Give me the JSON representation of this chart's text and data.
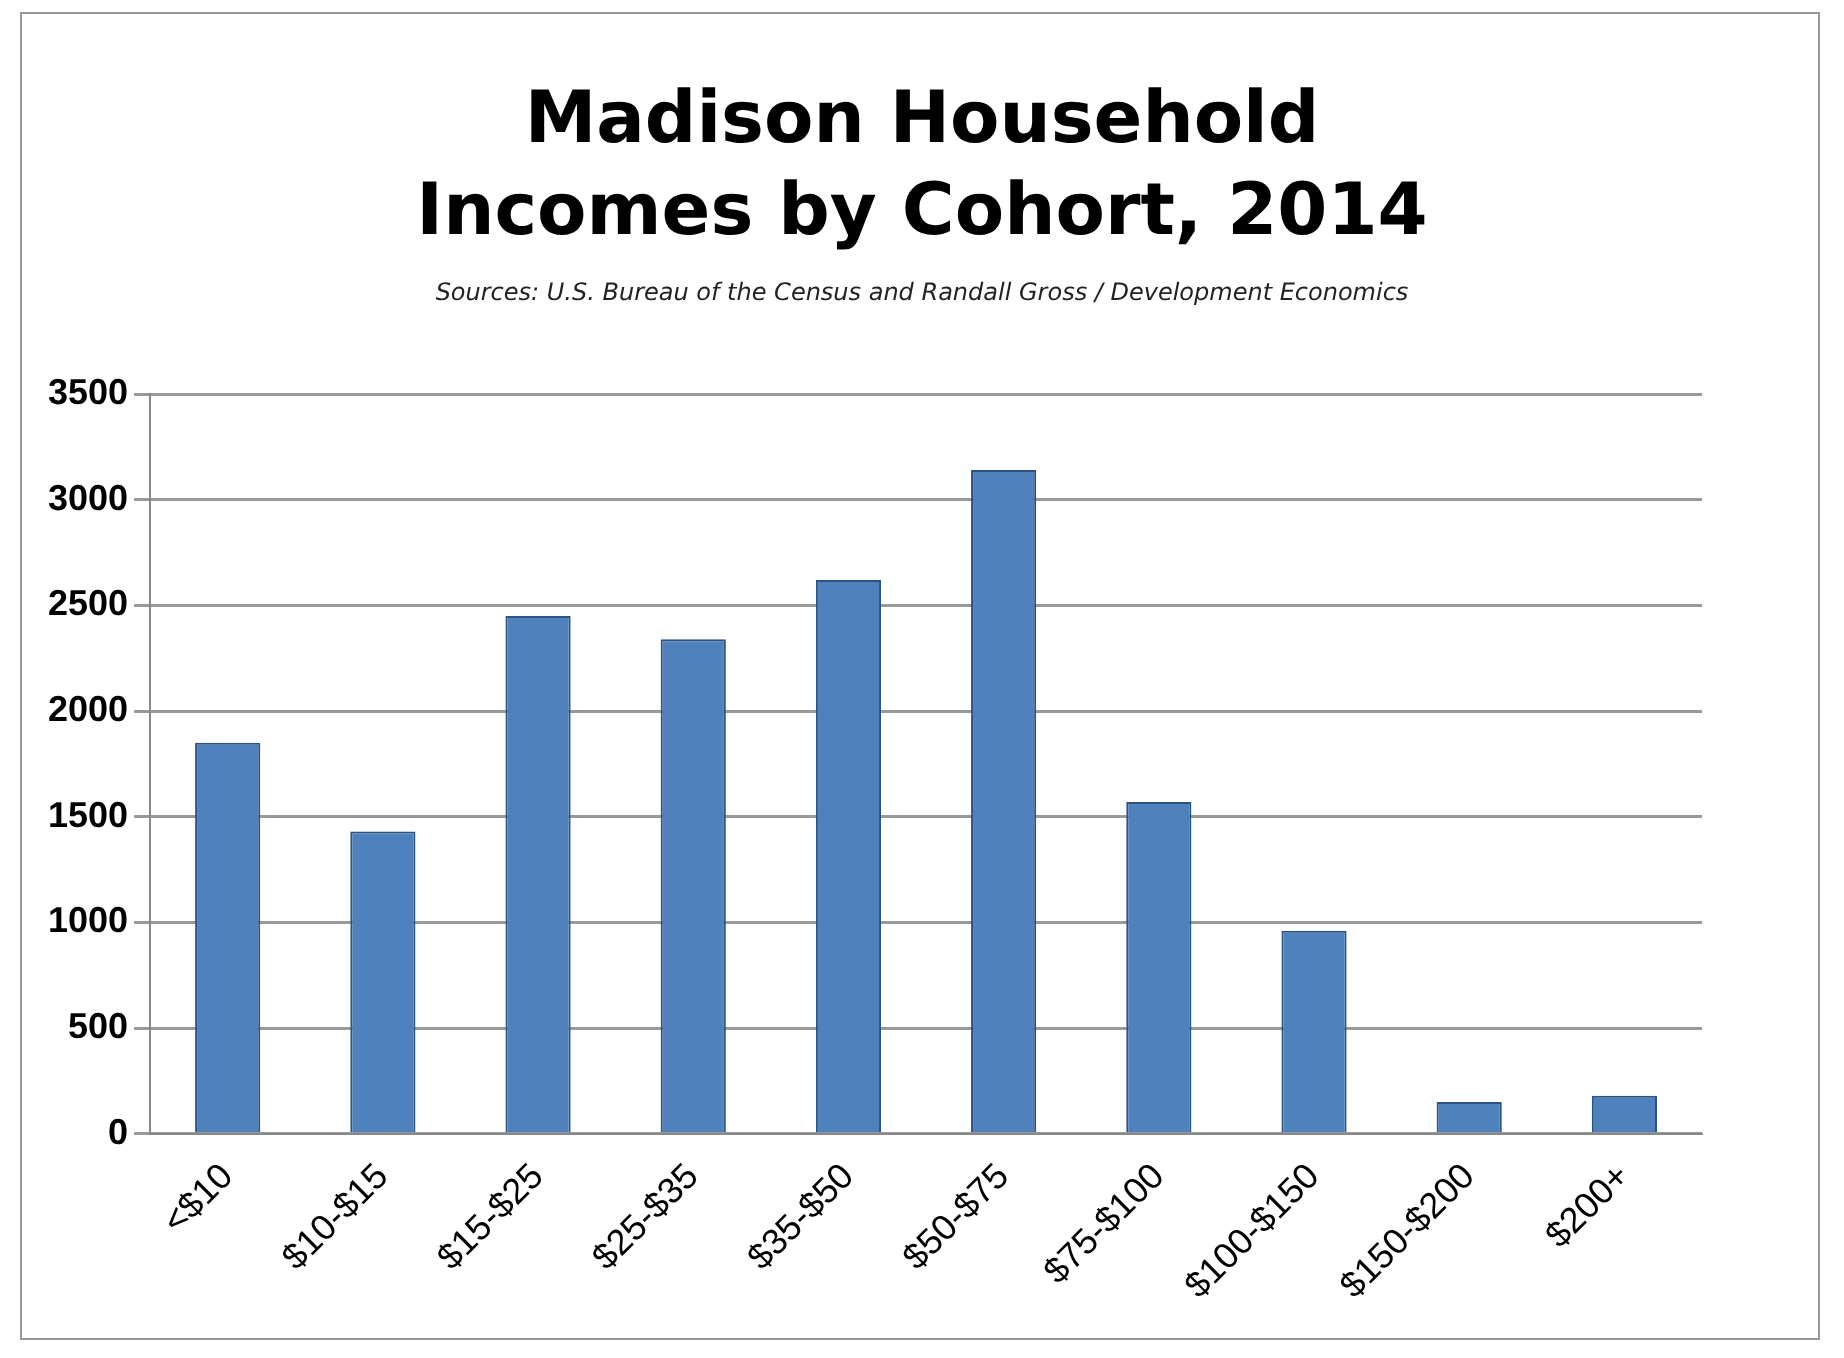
{
  "chart_data": {
    "type": "bar",
    "title": "Madison Household Incomes by Cohort, 2014",
    "annotations": [
      "Sources: U.S. Bureau of the Census and Randall Gross / Development Economics"
    ],
    "categories": [
      "<$10",
      "$10-$15",
      "$15-$25",
      "$25-$35",
      "$35-$50",
      "$50-$75",
      "$75-$100",
      "$100-$150",
      "$150-$200",
      "$200+"
    ],
    "values": [
      1850,
      1430,
      2450,
      2340,
      2620,
      3140,
      1570,
      960,
      150,
      180
    ],
    "color": "#4f81bd",
    "ylim": [
      0,
      3500
    ],
    "yticks": [
      0,
      500,
      1000,
      1500,
      2000,
      2500,
      3000,
      3500
    ],
    "grid": "y"
  }
}
